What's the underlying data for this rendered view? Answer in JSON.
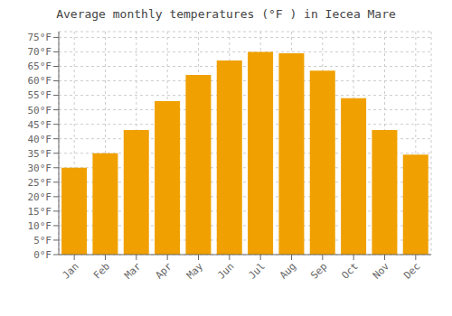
{
  "chart_data": {
    "type": "bar",
    "title": "Average monthly temperatures (°F ) in Iecea Mare",
    "categories": [
      "Jan",
      "Feb",
      "Mar",
      "Apr",
      "May",
      "Jun",
      "Jul",
      "Aug",
      "Sep",
      "Oct",
      "Nov",
      "Dec"
    ],
    "values": [
      30,
      35,
      43,
      53,
      62,
      67,
      70,
      69.5,
      63.5,
      54,
      43,
      34.5
    ],
    "color": "#F0A000",
    "ylim": [
      0,
      77
    ],
    "yticks": [
      {
        "value": 0,
        "label": "0°F"
      },
      {
        "value": 5,
        "label": "5°F"
      },
      {
        "value": 10,
        "label": "10°F"
      },
      {
        "value": 15,
        "label": "15°F"
      },
      {
        "value": 20,
        "label": "20°F"
      },
      {
        "value": 25,
        "label": "25°F"
      },
      {
        "value": 30,
        "label": "30°F"
      },
      {
        "value": 35,
        "label": "35°F"
      },
      {
        "value": 40,
        "label": "40°F"
      },
      {
        "value": 45,
        "label": "45°F"
      },
      {
        "value": 50,
        "label": "50°F"
      },
      {
        "value": 55,
        "label": "55°F"
      },
      {
        "value": 60,
        "label": "60°F"
      },
      {
        "value": 65,
        "label": "65°F"
      },
      {
        "value": 70,
        "label": "70°F"
      },
      {
        "value": 75,
        "label": "75°F"
      }
    ],
    "grid": true
  }
}
